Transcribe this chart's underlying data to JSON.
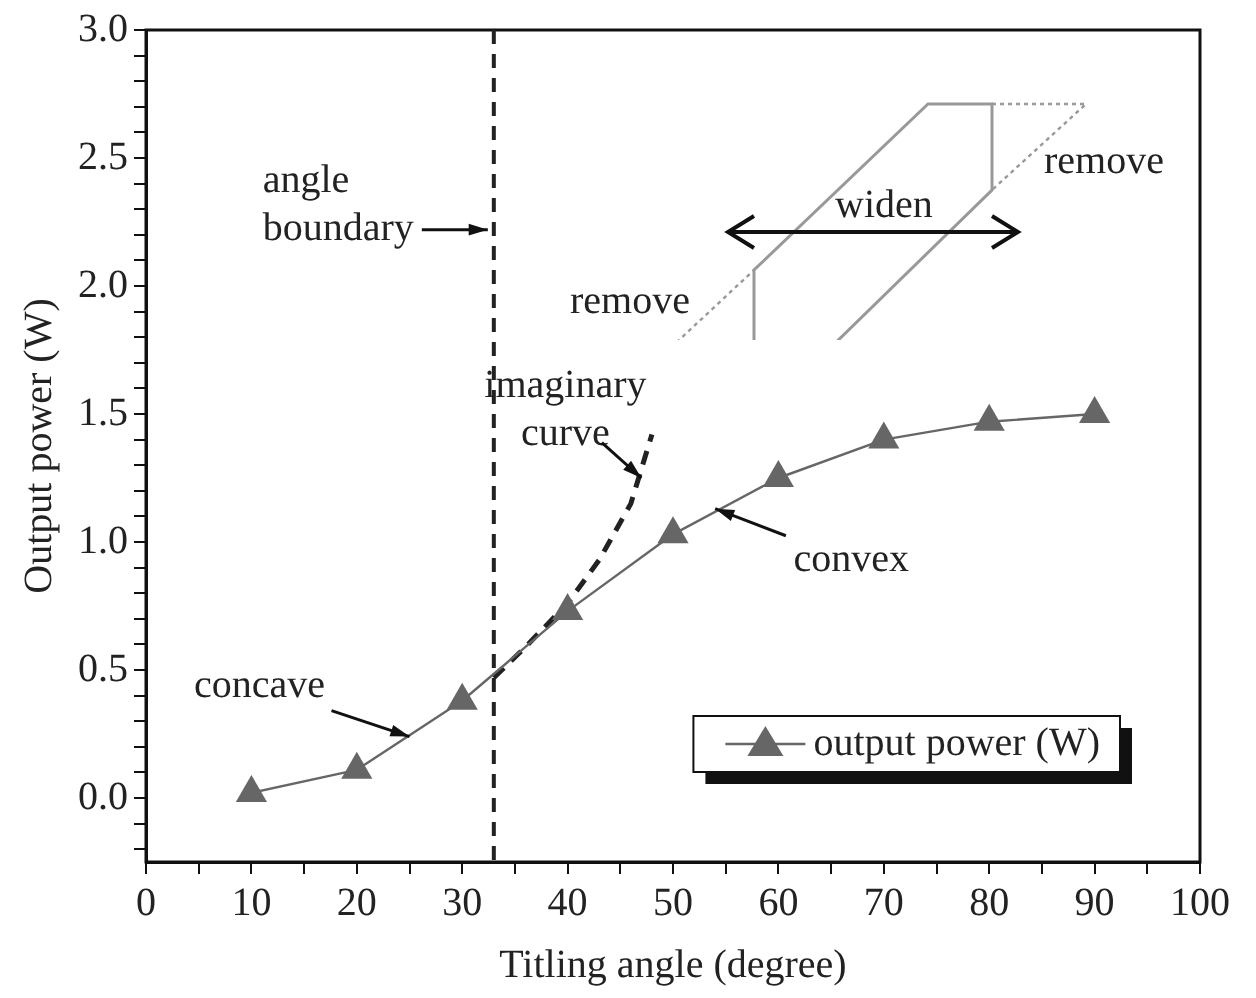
{
  "chart_data": {
    "type": "line",
    "xlabel": "Titling angle (degree)",
    "ylabel": "Output power (W)",
    "x": [
      10,
      20,
      30,
      40,
      50,
      60,
      70,
      80,
      90
    ],
    "xlim": [
      0,
      100
    ],
    "xticks": [
      0,
      {
        "value": 5,
        "label": null
      },
      10,
      {
        "value": 15,
        "label": null
      },
      20,
      {
        "value": 25,
        "label": null
      },
      30,
      {
        "value": 35,
        "label": null
      },
      40,
      {
        "value": 45,
        "label": null
      },
      50,
      {
        "value": 55,
        "label": null
      },
      60,
      {
        "value": 65,
        "label": null
      },
      70,
      {
        "value": 75,
        "label": null
      },
      80,
      {
        "value": 85,
        "label": null
      },
      90,
      {
        "value": 95,
        "label": null
      },
      100
    ],
    "ylim": [
      -0.25,
      3.0
    ],
    "yticks": [
      {
        "value": -0.2,
        "label": null
      },
      {
        "value": -0.1,
        "label": null
      },
      {
        "value": 0,
        "label": "0.0"
      },
      {
        "value": 0.1,
        "label": null
      },
      {
        "value": 0.2,
        "label": null
      },
      {
        "value": 0.3,
        "label": null
      },
      {
        "value": 0.4,
        "label": null
      },
      0.5,
      {
        "value": 0.6,
        "label": null
      },
      {
        "value": 0.7,
        "label": null
      },
      {
        "value": 0.8,
        "label": null
      },
      {
        "value": 0.9,
        "label": null
      },
      {
        "value": 1,
        "label": "1.0"
      },
      {
        "value": 1.1,
        "label": null
      },
      {
        "value": 1.2,
        "label": null
      },
      {
        "value": 1.3,
        "label": null
      },
      {
        "value": 1.4,
        "label": null
      },
      1.5,
      {
        "value": 1.6,
        "label": null
      },
      {
        "value": 1.7,
        "label": null
      },
      {
        "value": 1.8,
        "label": null
      },
      {
        "value": 1.9,
        "label": null
      },
      {
        "value": 2,
        "label": "2.0"
      },
      {
        "value": 2.1,
        "label": null
      },
      {
        "value": 2.2,
        "label": null
      },
      {
        "value": 2.3,
        "label": null
      },
      {
        "value": 2.4,
        "label": null
      },
      2.5,
      {
        "value": 2.6,
        "label": null
      },
      {
        "value": 2.7,
        "label": null
      },
      {
        "value": 2.8,
        "label": null
      },
      {
        "value": 2.9,
        "label": null
      },
      {
        "value": 3,
        "label": "3.0"
      }
    ],
    "grid": false,
    "legend": "bottom right",
    "series": [
      {
        "name": "output power (W)",
        "color": "#666666",
        "values": [
          0.02,
          0.11,
          0.38,
          0.73,
          1.03,
          1.25,
          1.4,
          1.47,
          1.5
        ],
        "marker": "triangle",
        "line_style": "solid"
      },
      {
        "type": "line",
        "color": "#222222",
        "x": [
          33,
          36,
          40,
          43,
          46,
          48
        ],
        "values": [
          0.47,
          0.59,
          0.76,
          0.93,
          1.15,
          1.42
        ],
        "marker": "none",
        "line_style": "dashed"
      }
    ],
    "ref_lines": [
      {
        "axis": "x",
        "value": 33,
        "label": "angle boundary",
        "line_style": "dashed",
        "color": "#222222"
      }
    ],
    "annotations": [
      "remove",
      "widen",
      "remove",
      {
        "text": "concave",
        "x": 25,
        "y": 0.24
      },
      {
        "text": "convex",
        "x": 54,
        "y": 1.13
      },
      {
        "text": "imaginary curve",
        "x": 47,
        "y": 1.25
      }
    ]
  }
}
